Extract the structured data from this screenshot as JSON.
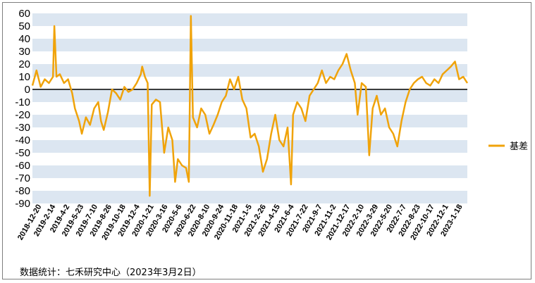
{
  "chart_data": {
    "type": "line",
    "title": "",
    "xlabel": "",
    "ylabel": "",
    "ylim": [
      -90,
      60
    ],
    "y_ticks": [
      60,
      50,
      40,
      30,
      20,
      10,
      0,
      -10,
      -20,
      -30,
      -40,
      -50,
      -60,
      -70,
      -80,
      -90
    ],
    "x_tick_labels": [
      "2018-12-20",
      "2019-2-14",
      "2019-4-2",
      "2019-5-23",
      "2019-7-10",
      "2019-8-26",
      "2019-10-18",
      "2019-12-4",
      "2020-1-21",
      "2020-3-16",
      "2020-5-6",
      "2020-6-22",
      "2020-8-10",
      "2020-9-24",
      "2020-11-18",
      "2021-1-5",
      "2021-2-26",
      "2021-4-15",
      "2021-6-4",
      "2021-7-22",
      "2021-9-7",
      "2021-11-2",
      "2021-12-17",
      "2022-2-10",
      "2022-3-29",
      "2022-5-20",
      "2022-7-7",
      "2022-8-23",
      "2022-10-17",
      "2022-12-1",
      "2023-1-18"
    ],
    "grid": "alternating horizontal bands",
    "legend_position": "right",
    "series": [
      {
        "name": "基差",
        "color": "#f0a30a",
        "points": [
          [
            0,
            3
          ],
          [
            0.3,
            15
          ],
          [
            0.6,
            2
          ],
          [
            0.9,
            8
          ],
          [
            1.2,
            5
          ],
          [
            1.5,
            10
          ],
          [
            1.6,
            50
          ],
          [
            1.75,
            10
          ],
          [
            2.0,
            12
          ],
          [
            2.3,
            5
          ],
          [
            2.6,
            8
          ],
          [
            2.9,
            -3
          ],
          [
            3.1,
            -15
          ],
          [
            3.4,
            -25
          ],
          [
            3.6,
            -35
          ],
          [
            3.9,
            -22
          ],
          [
            4.2,
            -28
          ],
          [
            4.5,
            -15
          ],
          [
            4.8,
            -10
          ],
          [
            5.0,
            -25
          ],
          [
            5.2,
            -32
          ],
          [
            5.5,
            -18
          ],
          [
            5.8,
            0
          ],
          [
            6.1,
            -3
          ],
          [
            6.4,
            -8
          ],
          [
            6.7,
            2
          ],
          [
            7.0,
            -2
          ],
          [
            7.3,
            0
          ],
          [
            7.6,
            5
          ],
          [
            7.9,
            12
          ],
          [
            8.0,
            18
          ],
          [
            8.2,
            10
          ],
          [
            8.4,
            5
          ],
          [
            8.55,
            -84
          ],
          [
            8.7,
            -12
          ],
          [
            9.0,
            -8
          ],
          [
            9.3,
            -10
          ],
          [
            9.6,
            -50
          ],
          [
            9.9,
            -30
          ],
          [
            10.2,
            -40
          ],
          [
            10.4,
            -73
          ],
          [
            10.6,
            -55
          ],
          [
            10.9,
            -60
          ],
          [
            11.2,
            -62
          ],
          [
            11.4,
            -73
          ],
          [
            11.55,
            58
          ],
          [
            11.7,
            -22
          ],
          [
            12.0,
            -30
          ],
          [
            12.3,
            -15
          ],
          [
            12.6,
            -20
          ],
          [
            12.9,
            -35
          ],
          [
            13.2,
            -28
          ],
          [
            13.5,
            -20
          ],
          [
            13.8,
            -10
          ],
          [
            14.1,
            -5
          ],
          [
            14.4,
            8
          ],
          [
            14.7,
            0
          ],
          [
            15.0,
            10
          ],
          [
            15.3,
            -8
          ],
          [
            15.6,
            -15
          ],
          [
            15.9,
            -38
          ],
          [
            16.2,
            -35
          ],
          [
            16.5,
            -45
          ],
          [
            16.8,
            -65
          ],
          [
            17.1,
            -55
          ],
          [
            17.4,
            -35
          ],
          [
            17.7,
            -20
          ],
          [
            18.0,
            -40
          ],
          [
            18.3,
            -45
          ],
          [
            18.6,
            -30
          ],
          [
            18.85,
            -75
          ],
          [
            19.0,
            -20
          ],
          [
            19.3,
            -10
          ],
          [
            19.6,
            -15
          ],
          [
            19.9,
            -25
          ],
          [
            20.2,
            -5
          ],
          [
            20.5,
            0
          ],
          [
            20.8,
            5
          ],
          [
            21.1,
            15
          ],
          [
            21.4,
            5
          ],
          [
            21.7,
            10
          ],
          [
            22.0,
            8
          ],
          [
            22.3,
            15
          ],
          [
            22.6,
            20
          ],
          [
            22.9,
            28
          ],
          [
            23.2,
            15
          ],
          [
            23.5,
            5
          ],
          [
            23.7,
            -20
          ],
          [
            24.0,
            5
          ],
          [
            24.3,
            2
          ],
          [
            24.55,
            -52
          ],
          [
            24.8,
            -15
          ],
          [
            25.1,
            -5
          ],
          [
            25.4,
            -20
          ],
          [
            25.7,
            -15
          ],
          [
            26.0,
            -30
          ],
          [
            26.3,
            -35
          ],
          [
            26.6,
            -45
          ],
          [
            26.9,
            -25
          ],
          [
            27.2,
            -10
          ],
          [
            27.5,
            0
          ],
          [
            27.8,
            5
          ],
          [
            28.1,
            8
          ],
          [
            28.4,
            10
          ],
          [
            28.7,
            5
          ],
          [
            29.0,
            3
          ],
          [
            29.3,
            8
          ],
          [
            29.6,
            5
          ],
          [
            29.9,
            12
          ],
          [
            30.2,
            15
          ],
          [
            30.5,
            18
          ],
          [
            30.8,
            22
          ],
          [
            31.1,
            8
          ],
          [
            31.4,
            10
          ],
          [
            31.7,
            5
          ]
        ]
      }
    ]
  },
  "legend": {
    "label": "基差"
  },
  "source_note": "数据统计：七禾研究中心（2023年3月2日）"
}
